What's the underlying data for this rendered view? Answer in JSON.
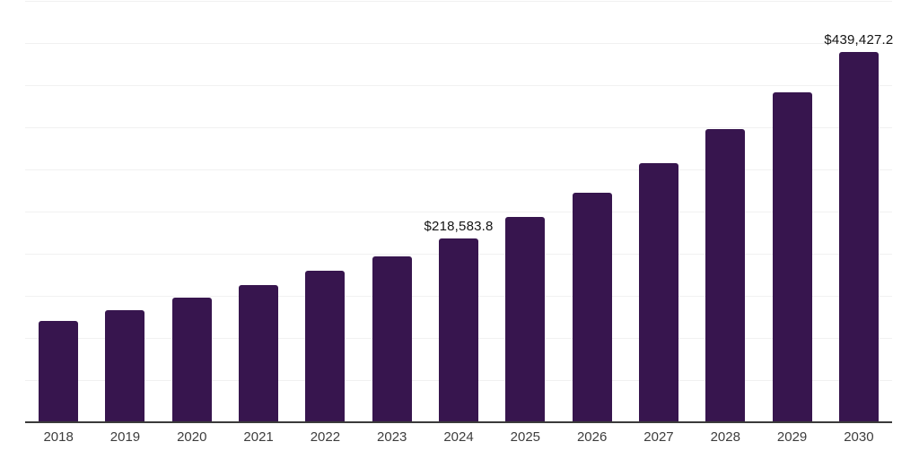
{
  "chart_data": {
    "type": "bar",
    "title": "",
    "xlabel": "",
    "ylabel": "",
    "categories": [
      "2018",
      "2019",
      "2020",
      "2021",
      "2022",
      "2023",
      "2024",
      "2025",
      "2026",
      "2027",
      "2028",
      "2029",
      "2030"
    ],
    "values": [
      120200,
      133000,
      147900,
      162800,
      179800,
      196800,
      218583.8,
      243600,
      272300,
      307400,
      347900,
      391500,
      439427.2
    ],
    "data_labels": {
      "2024": "$218,583.8",
      "2030": "$439,427.2"
    },
    "ylim": [
      0,
      500000
    ],
    "gridline_interval": 50000,
    "grid": "horizontal-only",
    "y_tick_labels_visible": false,
    "legend": "none"
  },
  "colors": {
    "bar": "#37154E",
    "gridline": "#f1f1f1",
    "axis_line": "#3a3a3a",
    "data_label_text": "#141414",
    "tick_label_text": "#3d3d3d",
    "background": "#ffffff"
  }
}
